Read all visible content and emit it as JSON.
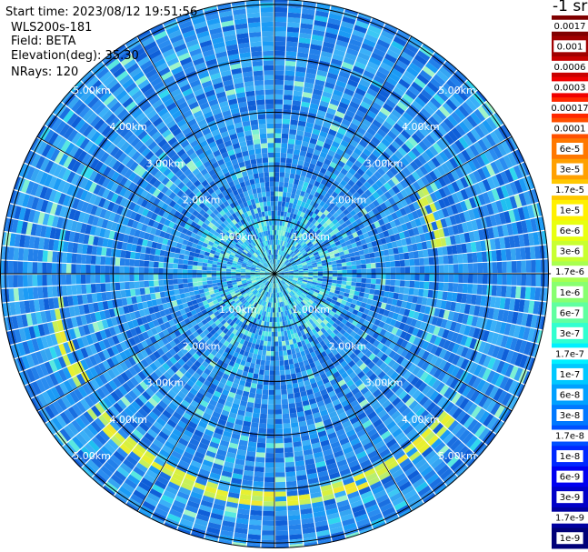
{
  "info": {
    "start_time": "Start time: 2023/08/12 19:51:56",
    "instrument": "WLS200s-181",
    "field": "Field: BETA",
    "elevation": "Elevation(deg): 35.30",
    "nrays": "NRays: 120"
  },
  "chart_data": {
    "type": "heatmap",
    "projection": "polar (PPI scan)",
    "range_rings_km": [
      1,
      2,
      3,
      4,
      5
    ],
    "range_labels": [
      "1.00km",
      "2.00km",
      "3.00km",
      "4.00km",
      "5.00km"
    ],
    "max_range_km": 5.1,
    "nrays": 120,
    "azimuth_spokes_deg": [
      0,
      30,
      60,
      90,
      120,
      150,
      180,
      210,
      240,
      270,
      300,
      330
    ],
    "colorbar": {
      "title": "-1 sr",
      "ticks": [
        "0.0017",
        "0.001",
        "0.0006",
        "0.0003",
        "0.00017",
        "0.0001",
        "6e-5",
        "3e-5",
        "1.7e-5",
        "1e-5",
        "6e-6",
        "3e-6",
        "1.7e-6",
        "1e-6",
        "6e-7",
        "3e-7",
        "1.7e-7",
        "1e-7",
        "6e-8",
        "3e-8",
        "1.7e-8",
        "1e-8",
        "6e-9",
        "3e-9",
        "1.7e-9",
        "1e-9"
      ],
      "colors": [
        "#800000",
        "#a00000",
        "#c80000",
        "#f00000",
        "#ff2800",
        "#ff5000",
        "#ff7800",
        "#ffa000",
        "#ffc800",
        "#fff000",
        "#e8ff10",
        "#c8ff30",
        "#a8ff50",
        "#88ff70",
        "#60ffa0",
        "#30ffd0",
        "#00f0ff",
        "#00c8ff",
        "#00a0ff",
        "#0078ff",
        "#0050ff",
        "#0028ff",
        "#0000f0",
        "#0000c8",
        "#0000a0",
        "#000078"
      ]
    },
    "features": [
      {
        "description": "aerosol ring",
        "range_km": [
          4.0,
          4.3
        ],
        "azimuth_deg": [
          130,
          235
        ],
        "level": "1e-5"
      },
      {
        "description": "aerosol ring",
        "range_km": [
          3.9,
          4.2
        ],
        "azimuth_deg": [
          240,
          265
        ],
        "level": "3e-6"
      },
      {
        "description": "aerosol ring",
        "range_km": [
          2.9,
          3.2
        ],
        "azimuth_deg": [
          60,
          80
        ],
        "level": "1e-6"
      },
      {
        "description": "near field",
        "range_km": [
          0,
          1.5
        ],
        "azimuth_deg": [
          0,
          360
        ],
        "level": "1e-7"
      },
      {
        "description": "background",
        "range_km": [
          1.5,
          5.1
        ],
        "azimuth_deg": [
          0,
          360
        ],
        "level": "6e-8"
      }
    ]
  }
}
